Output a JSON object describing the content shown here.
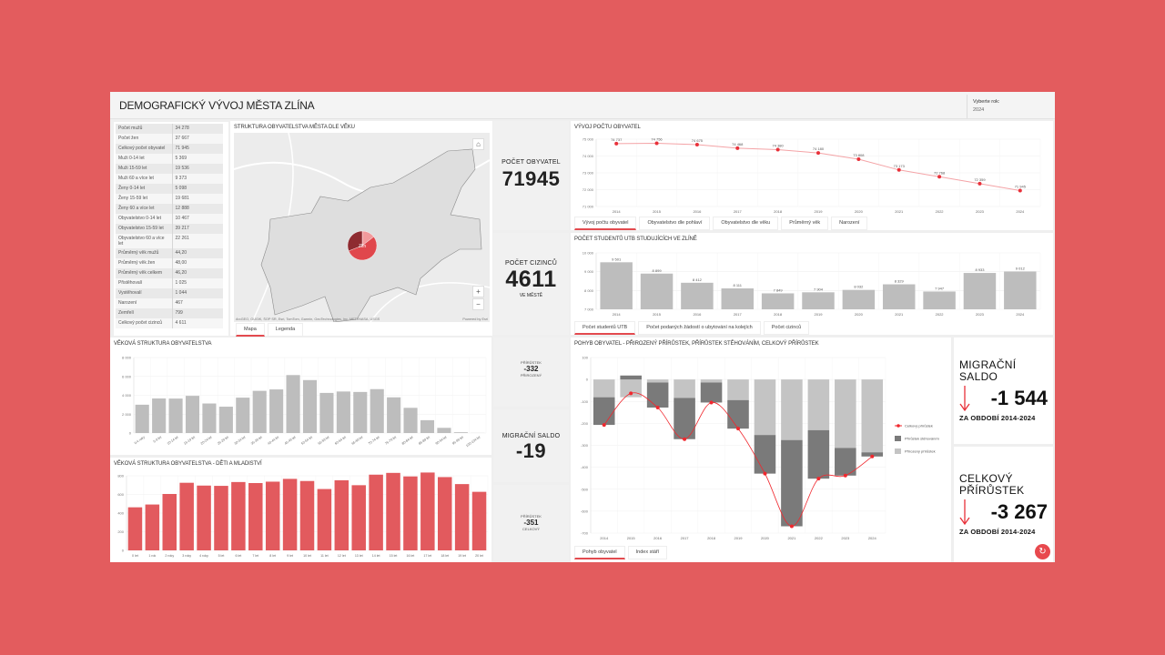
{
  "header": {
    "title": "DEMOGRAFICKÝ VÝVOJ MĚSTA ZLÍNA",
    "year_label": "Vyberte rok:",
    "year_value": "2024"
  },
  "colors": {
    "background": "#E35C5E",
    "accent": "#E34A4F",
    "bar_gray": "#BDBDBD",
    "bar_dark": "#7A7A7A",
    "bar_red": "#E25A5E"
  },
  "stats_table": [
    [
      "Počet mužů",
      "34 278"
    ],
    [
      "Počet žen",
      "37 667"
    ],
    [
      "Celkový počet obyvatel",
      "71 945"
    ],
    [
      "Muži 0-14 let",
      "5 369"
    ],
    [
      "Muži 15-59 let",
      "19 536"
    ],
    [
      "Muži 60 a více let",
      "9 373"
    ],
    [
      "Ženy 0-14 let",
      "5 098"
    ],
    [
      "Ženy 15-59 let",
      "19 681"
    ],
    [
      "Ženy 60 a více let",
      "12 888"
    ],
    [
      "Obyvatelstvo 0-14 let",
      "10 467"
    ],
    [
      "Obyvatelstvo 15-59 let",
      "39 217"
    ],
    [
      "Obyvatelstvo 60 a více let",
      "22 261"
    ],
    [
      "Průměrný věk mužů",
      "44,20"
    ],
    [
      "Průměrný věk žen",
      "48,00"
    ],
    [
      "Průměrný věk celkem",
      "46,20"
    ],
    [
      "Přistěhovalí",
      "1 025"
    ],
    [
      "Vystěhovalí",
      "1 044"
    ],
    [
      "Narození",
      "467"
    ],
    [
      "Zemřelí",
      "799"
    ],
    [
      "Celkový počet cizinců",
      "4 611"
    ]
  ],
  "map": {
    "title": "STRUKTURA OBYVATELSTVA MĚSTA DLE VĚKU",
    "place_label": "Zlín",
    "attribution": "ArcGEO, GUGiK, ŠOP SR, Esri, TomTom, Garmin, GeoTechnologies, Inc, METI/NASA, USGS",
    "powered": "Powered by Esri",
    "zoom_in": "+",
    "zoom_out": "−",
    "home_icon": "home-icon",
    "tabs": [
      "Mapa",
      "Legenda"
    ],
    "pie": [
      {
        "value": 10467,
        "color": "#F29A9C"
      },
      {
        "value": 39217,
        "color": "#E0474C"
      },
      {
        "value": 22261,
        "color": "#8E2B30"
      }
    ]
  },
  "kpis": {
    "population": {
      "label": "POČET OBYVATEL",
      "value": "71945"
    },
    "foreigners": {
      "label": "POČET CIZINCŮ",
      "value": "4611",
      "sub": "VE MĚSTĚ"
    },
    "natural": {
      "label": "PŘÍRŮSTEK",
      "value": "-332",
      "sub": "PŘIROZENÝ"
    },
    "migration": {
      "label": "MIGRAČNÍ SALDO",
      "value": "-19"
    },
    "total": {
      "label": "PŘÍRŮSTEK",
      "value": "-351",
      "sub": "CELKOVÝ"
    }
  },
  "right_kpis": [
    {
      "label": "MIGRAČNÍ SALDO",
      "value": "-1 544",
      "sub": "ZA OBDOBÍ 2014-2024",
      "icon": "arrow-down-icon"
    },
    {
      "label": "CELKOVÝ PŘÍRŮSTEK",
      "value": "-3 267",
      "sub": "ZA OBDOBÍ 2014-2024",
      "icon": "arrow-down-icon"
    }
  ],
  "tabs": {
    "population": [
      "Vývoj počtu obyvatel",
      "Obyvatelstvo dle pohlaví",
      "Obyvatelstvo dle věku",
      "Průměrný věk",
      "Narození"
    ],
    "students": [
      "Počet studentů UTB",
      "Počet podaných žádostí o ubytování na kolejích",
      "Počet cizinců"
    ],
    "movement": [
      "Pohyb obyvatel",
      "Index stáří"
    ]
  },
  "chart_data": [
    {
      "id": "pop",
      "type": "line",
      "title": "VÝVOJ POČTU OBYVATEL",
      "categories": [
        "2014",
        "2015",
        "2016",
        "2017",
        "2018",
        "2019",
        "2020",
        "2021",
        "2022",
        "2023",
        "2024"
      ],
      "values": [
        74737,
        74756,
        74675,
        74468,
        74380,
        74180,
        73808,
        73173,
        72768,
        72359,
        71945
      ],
      "ylim": [
        71000,
        75000
      ],
      "yticks": [
        71000,
        72000,
        73000,
        74000,
        75000
      ],
      "data_labels": true,
      "grid": true,
      "color": "#E8313A"
    },
    {
      "id": "stud",
      "type": "bar",
      "title": "POČET STUDENTŮ UTB STUDUJÍCÍCH VE ZLÍNĚ",
      "categories": [
        "2014",
        "2015",
        "2016",
        "2017",
        "2018",
        "2019",
        "2020",
        "2021",
        "2022",
        "2023",
        "2024"
      ],
      "values": [
        9501,
        8899,
        8412,
        8111,
        7849,
        7904,
        8032,
        8329,
        7947,
        8933,
        9012
      ],
      "ylim": [
        7000,
        10000
      ],
      "yticks": [
        7000,
        8000,
        9000,
        10000
      ],
      "data_labels": true,
      "grid": true,
      "color": "#BDBDBD"
    },
    {
      "id": "age",
      "type": "bar",
      "title": "VĚKOVÁ STRUKTURA OBYVATELSTVA",
      "categories": [
        "0-4 roky",
        "5-9 let",
        "10-14 let",
        "15-19 let",
        "20-24 let",
        "25-29 let",
        "30-34 let",
        "35-39 let",
        "40-44 let",
        "45-49 let",
        "50-54 let",
        "55-59 let",
        "60-64 let",
        "65-69 let",
        "70-74 let",
        "75-79 let",
        "80-84 let",
        "85-89 let",
        "90-94 let",
        "95-99 let",
        "100-104 let"
      ],
      "values": [
        3000,
        3660,
        3650,
        3940,
        3130,
        2790,
        3750,
        4470,
        4620,
        6140,
        5610,
        4250,
        4400,
        4350,
        4650,
        3780,
        2670,
        1360,
        550,
        80,
        10
      ],
      "ylim": [
        0,
        8000
      ],
      "yticks": [
        0,
        2000,
        4000,
        6000,
        8000
      ],
      "grid": true,
      "color": "#BDBDBD"
    },
    {
      "id": "kids",
      "type": "bar",
      "title": "VĚKOVÁ STRUKTURA OBYVATELSTVA - DĚTI A MLADISTVÍ",
      "categories": [
        "0 let",
        "1 rok",
        "2 roky",
        "3 roky",
        "4 roky",
        "5 let",
        "6 let",
        "7 let",
        "8 let",
        "9 let",
        "10 let",
        "11 let",
        "12 let",
        "13 let",
        "14 let",
        "15 let",
        "16 let",
        "17 let",
        "18 let",
        "19 let",
        "20 let"
      ],
      "values": [
        462,
        492,
        605,
        725,
        695,
        692,
        733,
        722,
        737,
        767,
        744,
        658,
        752,
        699,
        812,
        831,
        793,
        835,
        786,
        711,
        628
      ],
      "ylim": [
        0,
        800
      ],
      "yticks": [
        0,
        200,
        400,
        600,
        800
      ],
      "grid": true,
      "color": "#E25A5E"
    },
    {
      "id": "move",
      "type": "bar",
      "title": "POHYB OBYVATEL - PŘIROZENÝ PŘÍRŮSTEK, PŘÍRŮSTEK STĚHOVÁNÍM, CELKOVÝ PŘÍRŮSTEK",
      "stacked": true,
      "categories": [
        "2014",
        "2015",
        "2016",
        "2017",
        "2018",
        "2019",
        "2020",
        "2021",
        "2022",
        "2023",
        "2024"
      ],
      "series": [
        {
          "name": "Přirozený přírůstek",
          "type": "bar",
          "color": "#C4C4C4",
          "values": [
            -81,
            -81,
            -14,
            -84,
            -14,
            -94,
            -253,
            -276,
            -231,
            -312,
            -332
          ]
        },
        {
          "name": "Přírůstek stěhováním",
          "type": "bar",
          "color": "#7A7A7A",
          "values": [
            -126,
            18,
            -114,
            -188,
            -91,
            -130,
            -176,
            -393,
            -221,
            -126,
            -19
          ]
        },
        {
          "name": "Celkový přírůstek",
          "type": "line",
          "color": "#F0282E",
          "values": [
            -207,
            -63,
            -128,
            -272,
            -105,
            -224,
            -429,
            -669,
            -452,
            -438,
            -351
          ]
        }
      ],
      "ylim": [
        -700,
        100
      ],
      "yticks": [
        -700,
        -600,
        -500,
        -400,
        -300,
        -200,
        -100,
        0,
        100
      ],
      "grid": true,
      "legend": "right"
    }
  ],
  "refresh_icon": "refresh-icon"
}
